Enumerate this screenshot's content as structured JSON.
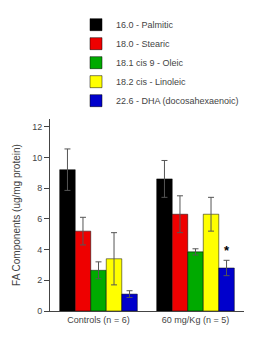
{
  "chart_data": {
    "type": "bar",
    "categories": [
      "Controls (n = 6)",
      "60 mg/Kg (n = 5)"
    ],
    "series": [
      {
        "name": "16.0 - Palmitic",
        "color": "#000000",
        "values": [
          9.2,
          8.6
        ],
        "errors": [
          1.35,
          1.2
        ]
      },
      {
        "name": "18.0 - Stearic",
        "color": "#ee0000",
        "values": [
          5.2,
          6.3
        ],
        "errors": [
          0.9,
          1.2
        ]
      },
      {
        "name": "18.1 cis 9 - Oleic",
        "color": "#00aa00",
        "values": [
          2.65,
          3.85
        ],
        "errors": [
          0.55,
          0.2
        ]
      },
      {
        "name": "18.2 cis - Linoleic",
        "color": "#ffff00",
        "values": [
          3.4,
          6.3
        ],
        "errors": [
          1.7,
          1.1
        ]
      },
      {
        "name": "22.6 - DHA (docosahexaenoic)",
        "color": "#0000cc",
        "values": [
          1.1,
          2.8
        ],
        "errors": [
          0.22,
          0.5
        ]
      }
    ],
    "ylabel": "FA Components (ug/mg protein)",
    "ylim": [
      0,
      12.5
    ],
    "yticks": [
      0,
      2,
      4,
      6,
      8,
      10,
      12
    ],
    "grid": false,
    "legend": "upper right",
    "annotations": [
      {
        "text": "*",
        "series": "22.6 - DHA (docosahexaenoic)",
        "category": "60 mg/Kg (n = 5)"
      }
    ]
  }
}
